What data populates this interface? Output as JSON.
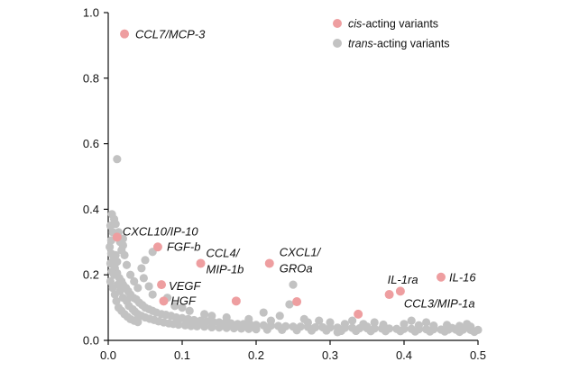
{
  "chart_data": {
    "type": "scatter",
    "title": "",
    "xlabel": "",
    "ylabel": "",
    "xlim": [
      0,
      0.5
    ],
    "ylim": [
      0,
      1.0
    ],
    "x_ticks": [
      "0.0",
      "0.1",
      "0.2",
      "0.3",
      "0.4",
      "0.5"
    ],
    "y_ticks": [
      "0.0",
      "0.2",
      "0.4",
      "0.6",
      "0.8",
      "1.0"
    ],
    "grid": false,
    "legend_position": "top-right",
    "legend": [
      {
        "prefix": "cis",
        "suffix": "-acting variants",
        "color": "#ee9ea0"
      },
      {
        "prefix": "trans",
        "suffix": "-acting variants",
        "color": "#c2c2c2"
      }
    ],
    "series": [
      {
        "name": "cis-acting variants",
        "color": "#ee9ea0",
        "points": [
          {
            "x": 0.022,
            "y": 0.935,
            "label": "CCL7/MCP-3"
          },
          {
            "x": 0.012,
            "y": 0.315,
            "label": "CXCL10/IP-10"
          },
          {
            "x": 0.067,
            "y": 0.285,
            "label": "FGF-b"
          },
          {
            "x": 0.125,
            "y": 0.235,
            "label": "CCL4/\nMIP-1b"
          },
          {
            "x": 0.218,
            "y": 0.235,
            "label": "CXCL1/\nGROa"
          },
          {
            "x": 0.072,
            "y": 0.17,
            "label": "VEGF"
          },
          {
            "x": 0.075,
            "y": 0.12,
            "label": "HGF"
          },
          {
            "x": 0.173,
            "y": 0.12,
            "label": ""
          },
          {
            "x": 0.255,
            "y": 0.118,
            "label": ""
          },
          {
            "x": 0.338,
            "y": 0.08,
            "label": ""
          },
          {
            "x": 0.38,
            "y": 0.14,
            "label": "IL-1ra"
          },
          {
            "x": 0.395,
            "y": 0.15,
            "label": "CCL3/MIP-1a"
          },
          {
            "x": 0.45,
            "y": 0.193,
            "label": "IL-16"
          }
        ]
      },
      {
        "name": "trans-acting variants",
        "color": "#c2c2c2",
        "points": [
          {
            "x": 0.012,
            "y": 0.553
          },
          {
            "x": 0.005,
            "y": 0.385
          },
          {
            "x": 0.008,
            "y": 0.37
          },
          {
            "x": 0.003,
            "y": 0.35
          },
          {
            "x": 0.006,
            "y": 0.33
          },
          {
            "x": 0.01,
            "y": 0.355
          },
          {
            "x": 0.014,
            "y": 0.33
          },
          {
            "x": 0.004,
            "y": 0.305
          },
          {
            "x": 0.016,
            "y": 0.3
          },
          {
            "x": 0.02,
            "y": 0.29
          },
          {
            "x": 0.018,
            "y": 0.275
          },
          {
            "x": 0.002,
            "y": 0.285
          },
          {
            "x": 0.022,
            "y": 0.26
          },
          {
            "x": 0.004,
            "y": 0.265
          },
          {
            "x": 0.007,
            "y": 0.245
          },
          {
            "x": 0.003,
            "y": 0.235
          },
          {
            "x": 0.009,
            "y": 0.22
          },
          {
            "x": 0.012,
            "y": 0.205
          },
          {
            "x": 0.005,
            "y": 0.21
          },
          {
            "x": 0.015,
            "y": 0.19
          },
          {
            "x": 0.018,
            "y": 0.18
          },
          {
            "x": 0.02,
            "y": 0.17
          },
          {
            "x": 0.024,
            "y": 0.16
          },
          {
            "x": 0.027,
            "y": 0.15
          },
          {
            "x": 0.03,
            "y": 0.14
          },
          {
            "x": 0.034,
            "y": 0.13
          },
          {
            "x": 0.038,
            "y": 0.125
          },
          {
            "x": 0.042,
            "y": 0.115
          },
          {
            "x": 0.046,
            "y": 0.108
          },
          {
            "x": 0.05,
            "y": 0.1
          },
          {
            "x": 0.055,
            "y": 0.095
          },
          {
            "x": 0.06,
            "y": 0.09
          },
          {
            "x": 0.065,
            "y": 0.085
          },
          {
            "x": 0.072,
            "y": 0.08
          },
          {
            "x": 0.078,
            "y": 0.078
          },
          {
            "x": 0.085,
            "y": 0.075
          },
          {
            "x": 0.092,
            "y": 0.07
          },
          {
            "x": 0.1,
            "y": 0.068
          },
          {
            "x": 0.108,
            "y": 0.065
          },
          {
            "x": 0.116,
            "y": 0.062
          },
          {
            "x": 0.125,
            "y": 0.06
          },
          {
            "x": 0.133,
            "y": 0.058
          },
          {
            "x": 0.142,
            "y": 0.056
          },
          {
            "x": 0.15,
            "y": 0.055
          },
          {
            "x": 0.158,
            "y": 0.053
          },
          {
            "x": 0.166,
            "y": 0.052
          },
          {
            "x": 0.175,
            "y": 0.05
          },
          {
            "x": 0.183,
            "y": 0.05
          },
          {
            "x": 0.192,
            "y": 0.048
          },
          {
            "x": 0.2,
            "y": 0.047
          },
          {
            "x": 0.21,
            "y": 0.046
          },
          {
            "x": 0.22,
            "y": 0.045
          },
          {
            "x": 0.23,
            "y": 0.044
          },
          {
            "x": 0.24,
            "y": 0.043
          },
          {
            "x": 0.25,
            "y": 0.042
          },
          {
            "x": 0.26,
            "y": 0.042
          },
          {
            "x": 0.27,
            "y": 0.041
          },
          {
            "x": 0.28,
            "y": 0.04
          },
          {
            "x": 0.29,
            "y": 0.04
          },
          {
            "x": 0.3,
            "y": 0.039
          },
          {
            "x": 0.31,
            "y": 0.039
          },
          {
            "x": 0.32,
            "y": 0.038
          },
          {
            "x": 0.33,
            "y": 0.038
          },
          {
            "x": 0.34,
            "y": 0.037
          },
          {
            "x": 0.35,
            "y": 0.037
          },
          {
            "x": 0.36,
            "y": 0.036
          },
          {
            "x": 0.37,
            "y": 0.036
          },
          {
            "x": 0.38,
            "y": 0.036
          },
          {
            "x": 0.39,
            "y": 0.035
          },
          {
            "x": 0.4,
            "y": 0.035
          },
          {
            "x": 0.41,
            "y": 0.035
          },
          {
            "x": 0.42,
            "y": 0.034
          },
          {
            "x": 0.43,
            "y": 0.034
          },
          {
            "x": 0.44,
            "y": 0.034
          },
          {
            "x": 0.45,
            "y": 0.033
          },
          {
            "x": 0.46,
            "y": 0.033
          },
          {
            "x": 0.47,
            "y": 0.033
          },
          {
            "x": 0.48,
            "y": 0.033
          },
          {
            "x": 0.49,
            "y": 0.032
          },
          {
            "x": 0.5,
            "y": 0.032
          },
          {
            "x": 0.01,
            "y": 0.26
          },
          {
            "x": 0.012,
            "y": 0.24
          },
          {
            "x": 0.008,
            "y": 0.2
          },
          {
            "x": 0.013,
            "y": 0.17
          },
          {
            "x": 0.016,
            "y": 0.15
          },
          {
            "x": 0.02,
            "y": 0.13
          },
          {
            "x": 0.025,
            "y": 0.12
          },
          {
            "x": 0.028,
            "y": 0.105
          },
          {
            "x": 0.033,
            "y": 0.095
          },
          {
            "x": 0.036,
            "y": 0.088
          },
          {
            "x": 0.04,
            "y": 0.08
          },
          {
            "x": 0.045,
            "y": 0.075
          },
          {
            "x": 0.05,
            "y": 0.07
          },
          {
            "x": 0.056,
            "y": 0.066
          },
          {
            "x": 0.062,
            "y": 0.062
          },
          {
            "x": 0.068,
            "y": 0.058
          },
          {
            "x": 0.075,
            "y": 0.055
          },
          {
            "x": 0.082,
            "y": 0.052
          },
          {
            "x": 0.088,
            "y": 0.05
          },
          {
            "x": 0.095,
            "y": 0.048
          },
          {
            "x": 0.104,
            "y": 0.046
          },
          {
            "x": 0.112,
            "y": 0.044
          },
          {
            "x": 0.12,
            "y": 0.043
          },
          {
            "x": 0.13,
            "y": 0.042
          },
          {
            "x": 0.14,
            "y": 0.04
          },
          {
            "x": 0.15,
            "y": 0.039
          },
          {
            "x": 0.16,
            "y": 0.038
          },
          {
            "x": 0.17,
            "y": 0.037
          },
          {
            "x": 0.18,
            "y": 0.036
          },
          {
            "x": 0.19,
            "y": 0.035
          },
          {
            "x": 0.2,
            "y": 0.034
          },
          {
            "x": 0.215,
            "y": 0.033
          },
          {
            "x": 0.235,
            "y": 0.032
          },
          {
            "x": 0.255,
            "y": 0.031
          },
          {
            "x": 0.275,
            "y": 0.03
          },
          {
            "x": 0.295,
            "y": 0.03
          },
          {
            "x": 0.315,
            "y": 0.029
          },
          {
            "x": 0.335,
            "y": 0.029
          },
          {
            "x": 0.355,
            "y": 0.028
          },
          {
            "x": 0.375,
            "y": 0.028
          },
          {
            "x": 0.395,
            "y": 0.028
          },
          {
            "x": 0.415,
            "y": 0.027
          },
          {
            "x": 0.435,
            "y": 0.027
          },
          {
            "x": 0.455,
            "y": 0.027
          },
          {
            "x": 0.475,
            "y": 0.026
          },
          {
            "x": 0.495,
            "y": 0.026
          },
          {
            "x": 0.003,
            "y": 0.18
          },
          {
            "x": 0.006,
            "y": 0.16
          },
          {
            "x": 0.009,
            "y": 0.14
          },
          {
            "x": 0.011,
            "y": 0.12
          },
          {
            "x": 0.014,
            "y": 0.1
          },
          {
            "x": 0.018,
            "y": 0.09
          },
          {
            "x": 0.022,
            "y": 0.08
          },
          {
            "x": 0.026,
            "y": 0.072
          },
          {
            "x": 0.03,
            "y": 0.065
          },
          {
            "x": 0.035,
            "y": 0.06
          },
          {
            "x": 0.04,
            "y": 0.056
          },
          {
            "x": 0.05,
            "y": 0.245
          },
          {
            "x": 0.045,
            "y": 0.22
          },
          {
            "x": 0.048,
            "y": 0.19
          },
          {
            "x": 0.055,
            "y": 0.165
          },
          {
            "x": 0.09,
            "y": 0.105
          },
          {
            "x": 0.11,
            "y": 0.09
          },
          {
            "x": 0.13,
            "y": 0.08
          },
          {
            "x": 0.16,
            "y": 0.07
          },
          {
            "x": 0.19,
            "y": 0.065
          },
          {
            "x": 0.232,
            "y": 0.075
          },
          {
            "x": 0.25,
            "y": 0.17
          },
          {
            "x": 0.245,
            "y": 0.11
          },
          {
            "x": 0.265,
            "y": 0.065
          },
          {
            "x": 0.285,
            "y": 0.06
          },
          {
            "x": 0.3,
            "y": 0.055
          },
          {
            "x": 0.32,
            "y": 0.05
          },
          {
            "x": 0.345,
            "y": 0.05
          },
          {
            "x": 0.36,
            "y": 0.055
          },
          {
            "x": 0.372,
            "y": 0.048
          },
          {
            "x": 0.4,
            "y": 0.05
          },
          {
            "x": 0.42,
            "y": 0.046
          },
          {
            "x": 0.44,
            "y": 0.045
          },
          {
            "x": 0.458,
            "y": 0.047
          },
          {
            "x": 0.475,
            "y": 0.044
          },
          {
            "x": 0.49,
            "y": 0.042
          },
          {
            "x": 0.06,
            "y": 0.27
          },
          {
            "x": 0.02,
            "y": 0.31
          },
          {
            "x": 0.025,
            "y": 0.23
          },
          {
            "x": 0.03,
            "y": 0.2
          },
          {
            "x": 0.035,
            "y": 0.18
          },
          {
            "x": 0.04,
            "y": 0.16
          },
          {
            "x": 0.06,
            "y": 0.14
          },
          {
            "x": 0.08,
            "y": 0.13
          },
          {
            "x": 0.1,
            "y": 0.1
          },
          {
            "x": 0.21,
            "y": 0.085
          },
          {
            "x": 0.14,
            "y": 0.075
          },
          {
            "x": 0.31,
            "y": 0.025
          },
          {
            "x": 0.22,
            "y": 0.06
          },
          {
            "x": 0.27,
            "y": 0.055
          },
          {
            "x": 0.33,
            "y": 0.06
          },
          {
            "x": 0.35,
            "y": 0.042
          },
          {
            "x": 0.41,
            "y": 0.06
          },
          {
            "x": 0.43,
            "y": 0.055
          },
          {
            "x": 0.465,
            "y": 0.038
          },
          {
            "x": 0.485,
            "y": 0.05
          }
        ]
      }
    ]
  }
}
